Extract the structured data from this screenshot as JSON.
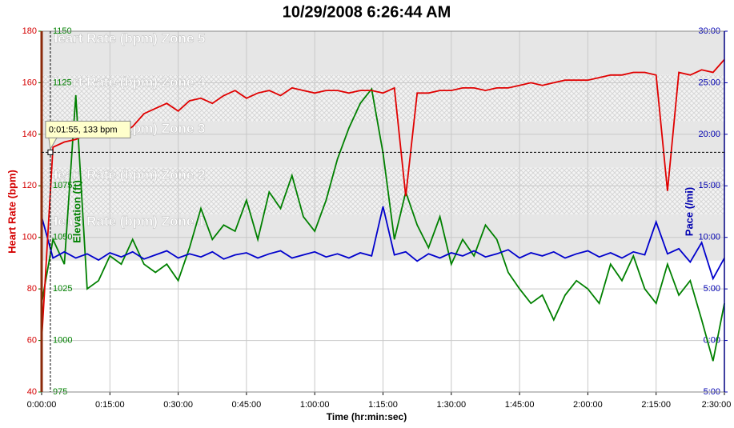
{
  "chart_data": {
    "type": "line",
    "title": "10/29/2008 6:26:44 AM",
    "x_label": "Time (hr:min:sec)",
    "xlim": [
      0,
      150
    ],
    "xticks": [
      {
        "value": 0,
        "label": "0:00:00"
      },
      {
        "value": 15,
        "label": "0:15:00"
      },
      {
        "value": 30,
        "label": "0:30:00"
      },
      {
        "value": 45,
        "label": "0:45:00"
      },
      {
        "value": 60,
        "label": "1:00:00"
      },
      {
        "value": 75,
        "label": "1:15:00"
      },
      {
        "value": 90,
        "label": "1:30:00"
      },
      {
        "value": 105,
        "label": "1:45:00"
      },
      {
        "value": 120,
        "label": "2:00:00"
      },
      {
        "value": 135,
        "label": "2:15:00"
      },
      {
        "value": 150,
        "label": "2:30:00"
      }
    ],
    "grid": true,
    "y_axes": [
      {
        "title": "Heart Rate (bpm)",
        "color": "#d40000",
        "lim": [
          40,
          180
        ],
        "ticks": [
          40,
          60,
          80,
          100,
          120,
          140,
          160,
          180
        ]
      },
      {
        "title": "Elevation (ft)",
        "color": "#008000",
        "lim": [
          975,
          1150
        ],
        "ticks": [
          975,
          1000,
          1025,
          1050,
          1075,
          1100,
          1125,
          1150
        ]
      },
      {
        "title": "Pace (/mi)",
        "color": "#0000b0",
        "lim": [
          -5,
          30
        ],
        "ticks": [
          {
            "value": -5,
            "label": "-5:00"
          },
          {
            "value": 0,
            "label": "0:00"
          },
          {
            "value": 5,
            "label": "5:00"
          },
          {
            "value": 10,
            "label": "10:00"
          },
          {
            "value": 15,
            "label": "15:00"
          },
          {
            "value": 20,
            "label": "20:00"
          },
          {
            "value": 25,
            "label": "25:00"
          },
          {
            "value": 30,
            "label": "30:00"
          }
        ]
      }
    ],
    "zones": [
      {
        "label": "Heart Rate (bpm) Zone 5",
        "range": [
          163,
          180
        ],
        "style": "solid"
      },
      {
        "label": "Heart Rate (bpm) Zone 4",
        "range": [
          145,
          163
        ],
        "style": "hatch"
      },
      {
        "label": "Heart Rate (bpm) Zone 3",
        "range": [
          127,
          145
        ],
        "style": "solid"
      },
      {
        "label": "Heart Rate (bpm) Zone 2",
        "range": [
          109,
          127
        ],
        "style": "hatch"
      },
      {
        "label": "Heart Rate (bpm) Zone 1",
        "range": [
          91,
          109
        ],
        "style": "solid"
      }
    ],
    "x": [
      0,
      2.5,
      5,
      7.5,
      10,
      12.5,
      15,
      17.5,
      20,
      22.5,
      25,
      27.5,
      30,
      32.5,
      35,
      37.5,
      40,
      42.5,
      45,
      47.5,
      50,
      52.5,
      55,
      57.5,
      60,
      62.5,
      65,
      67.5,
      70,
      72.5,
      75,
      77.5,
      80,
      82.5,
      85,
      87.5,
      90,
      92.5,
      95,
      97.5,
      100,
      102.5,
      105,
      107.5,
      110,
      112.5,
      115,
      117.5,
      120,
      122.5,
      125,
      127.5,
      130,
      132.5,
      135,
      137.5,
      140,
      142.5,
      145,
      147.5,
      150
    ],
    "series": [
      {
        "axis": 1,
        "color": "#008000",
        "values": [
          1018,
          1049,
          1037,
          1119,
          1025,
          1029,
          1041,
          1037,
          1049,
          1037,
          1033,
          1037,
          1029,
          1045,
          1064,
          1049,
          1056,
          1053,
          1068,
          1049,
          1072,
          1064,
          1080,
          1060,
          1053,
          1068,
          1088,
          1103,
          1115,
          1122,
          1091,
          1049,
          1072,
          1056,
          1045,
          1060,
          1037,
          1049,
          1041,
          1056,
          1049,
          1033,
          1025,
          1018,
          1022,
          1010,
          1022,
          1029,
          1025,
          1018,
          1037,
          1029,
          1041,
          1025,
          1018,
          1037,
          1022,
          1029,
          1010,
          990,
          1018
        ]
      },
      {
        "axis": 2,
        "color": "#0000cc",
        "values": [
          12,
          8.0,
          8.6,
          8.0,
          8.4,
          7.8,
          8.5,
          8.1,
          8.6,
          7.9,
          8.3,
          8.7,
          8.0,
          8.4,
          8.1,
          8.6,
          7.9,
          8.3,
          8.5,
          8.0,
          8.4,
          8.7,
          8.0,
          8.3,
          8.6,
          8.1,
          8.4,
          8.0,
          8.5,
          8.2,
          13,
          8.3,
          8.6,
          7.7,
          8.4,
          8.0,
          8.5,
          8.2,
          8.7,
          8.1,
          8.4,
          8.8,
          8.0,
          8.5,
          8.2,
          8.6,
          8.0,
          8.4,
          8.7,
          8.1,
          8.5,
          8.0,
          8.6,
          8.3,
          11.5,
          8.4,
          8.9,
          7.6,
          9.5,
          6.0,
          8.0
        ]
      },
      {
        "axis": 0,
        "color": "#e00000",
        "values": [
          60,
          135,
          137,
          138,
          140,
          142,
          141,
          140,
          143,
          148,
          150,
          152,
          149,
          153,
          154,
          152,
          155,
          157,
          154,
          156,
          157,
          155,
          158,
          157,
          156,
          157,
          157,
          156,
          157,
          157,
          156,
          158,
          116,
          156,
          156,
          157,
          157,
          158,
          158,
          157,
          158,
          158,
          159,
          160,
          159,
          160,
          161,
          161,
          161,
          162,
          163,
          163,
          164,
          164,
          163,
          118,
          164,
          163,
          165,
          164,
          169
        ]
      }
    ],
    "crosshair": {
      "label": "0:01:55, 133 bpm",
      "x": 1.92,
      "y": 133
    }
  }
}
